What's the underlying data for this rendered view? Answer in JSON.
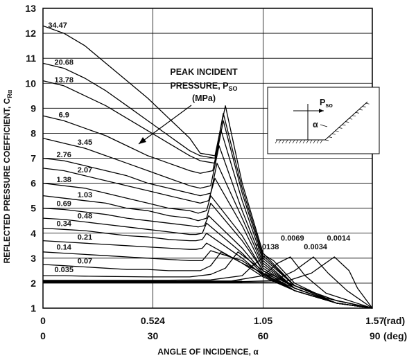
{
  "chart_data": {
    "type": "line",
    "title": "",
    "xlabel_prefix": "ANGLE OF INCIDENCE, ",
    "xlabel_symbol": "α",
    "ylabel_prefix": "REFLECTED PRESSURE COEFFICIENT, C",
    "ylabel_sub": "Rα",
    "xlim": [
      0,
      1.5708
    ],
    "ylim": [
      1,
      13
    ],
    "grid": true,
    "y_ticks": [
      "1",
      "2",
      "3",
      "4",
      "5",
      "6",
      "7",
      "8",
      "9",
      "10",
      "11",
      "12",
      "13"
    ],
    "x_ticks_rad": [
      "0",
      "0.524",
      "1.05",
      "1.57"
    ],
    "x_ticks_deg": [
      "0",
      "30",
      "60",
      "90"
    ],
    "x_unit_rad": "(rad)",
    "x_unit_deg": "(deg)",
    "annotation": {
      "line1": "PEAK INCIDENT",
      "line2_prefix": "PRESSURE, P",
      "line2_sub": "SO",
      "line3": "(MPa)"
    },
    "inset": {
      "label_prefix": "P",
      "label_sub": "so",
      "angle_symbol": "α"
    },
    "series": [
      {
        "label": "34.47",
        "x": [
          0,
          0.1,
          0.2,
          0.3,
          0.4,
          0.5,
          0.6,
          0.7,
          0.75,
          0.82,
          0.87,
          0.95,
          1.05,
          1.2,
          1.4,
          1.5708
        ],
        "y": [
          12.3,
          12.0,
          11.5,
          10.8,
          10.1,
          9.4,
          8.6,
          7.8,
          7.2,
          7.1,
          9.1,
          6.0,
          3.2,
          1.9,
          1.2,
          1.0
        ]
      },
      {
        "label": "20.68",
        "x": [
          0,
          0.1,
          0.2,
          0.3,
          0.4,
          0.5,
          0.6,
          0.7,
          0.75,
          0.82,
          0.86,
          0.95,
          1.05,
          1.2,
          1.4,
          1.5708
        ],
        "y": [
          10.8,
          10.6,
          10.2,
          9.7,
          9.1,
          8.5,
          7.9,
          7.3,
          7.1,
          7.0,
          8.8,
          5.8,
          3.1,
          1.9,
          1.2,
          1.0
        ]
      },
      {
        "label": "13.78",
        "x": [
          0,
          0.1,
          0.2,
          0.3,
          0.4,
          0.5,
          0.6,
          0.7,
          0.75,
          0.82,
          0.86,
          0.95,
          1.05,
          1.2,
          1.4,
          1.5708
        ],
        "y": [
          10.1,
          9.9,
          9.5,
          9.1,
          8.6,
          8.1,
          7.6,
          7.1,
          6.9,
          6.8,
          8.5,
          5.6,
          3.0,
          1.9,
          1.2,
          1.0
        ]
      },
      {
        "label": "6.9",
        "x": [
          0,
          0.1,
          0.2,
          0.3,
          0.4,
          0.5,
          0.6,
          0.7,
          0.75,
          0.81,
          0.85,
          0.95,
          1.05,
          1.2,
          1.4,
          1.5708
        ],
        "y": [
          8.7,
          8.5,
          8.2,
          7.9,
          7.5,
          7.1,
          6.8,
          6.5,
          6.4,
          6.5,
          8.1,
          5.3,
          2.9,
          1.8,
          1.2,
          1.0
        ]
      },
      {
        "label": "3.45",
        "x": [
          0,
          0.1,
          0.2,
          0.3,
          0.4,
          0.5,
          0.6,
          0.7,
          0.75,
          0.8,
          0.84,
          0.95,
          1.05,
          1.2,
          1.4,
          1.5708
        ],
        "y": [
          7.8,
          7.6,
          7.4,
          7.1,
          6.8,
          6.5,
          6.2,
          5.9,
          5.8,
          5.9,
          7.5,
          4.9,
          2.8,
          1.8,
          1.2,
          1.0
        ]
      },
      {
        "label": "2.76",
        "x": [
          0,
          0.1,
          0.2,
          0.3,
          0.4,
          0.5,
          0.6,
          0.7,
          0.75,
          0.8,
          0.83,
          0.95,
          1.05,
          1.2,
          1.4,
          1.5708
        ],
        "y": [
          7.0,
          6.9,
          6.7,
          6.5,
          6.3,
          6.0,
          5.8,
          5.6,
          5.5,
          5.6,
          6.8,
          4.6,
          2.7,
          1.8,
          1.2,
          1.0
        ]
      },
      {
        "label": "2.07",
        "x": [
          0,
          0.1,
          0.2,
          0.3,
          0.4,
          0.5,
          0.6,
          0.7,
          0.75,
          0.79,
          0.82,
          0.95,
          1.05,
          1.2,
          1.4,
          1.5708
        ],
        "y": [
          6.6,
          6.5,
          6.3,
          6.1,
          5.9,
          5.7,
          5.5,
          5.3,
          5.2,
          5.3,
          6.2,
          4.3,
          2.6,
          1.8,
          1.2,
          1.0
        ]
      },
      {
        "label": "1.38",
        "x": [
          0,
          0.1,
          0.2,
          0.3,
          0.4,
          0.5,
          0.6,
          0.7,
          0.74,
          0.78,
          0.8,
          0.95,
          1.05,
          1.2,
          1.4,
          1.5708
        ],
        "y": [
          6.0,
          5.9,
          5.8,
          5.6,
          5.4,
          5.2,
          5.0,
          4.9,
          4.8,
          4.9,
          5.5,
          3.9,
          2.5,
          1.7,
          1.2,
          1.0
        ]
      },
      {
        "label": "1.03",
        "x": [
          0,
          0.1,
          0.2,
          0.3,
          0.4,
          0.5,
          0.6,
          0.7,
          0.74,
          0.78,
          0.8,
          0.95,
          1.05,
          1.2,
          1.4,
          1.5708
        ],
        "y": [
          5.5,
          5.4,
          5.3,
          5.2,
          5.0,
          4.9,
          4.7,
          4.6,
          4.5,
          4.6,
          5.2,
          3.7,
          2.5,
          1.7,
          1.2,
          1.0
        ]
      },
      {
        "label": "0.69",
        "x": [
          0,
          0.1,
          0.2,
          0.3,
          0.4,
          0.5,
          0.6,
          0.7,
          0.74,
          0.77,
          0.79,
          0.95,
          1.05,
          1.2,
          1.4,
          1.5708
        ],
        "y": [
          5.0,
          4.95,
          4.85,
          4.75,
          4.6,
          4.5,
          4.4,
          4.3,
          4.25,
          4.3,
          4.7,
          3.4,
          2.4,
          1.7,
          1.2,
          1.0
        ]
      },
      {
        "label": "0.48",
        "x": [
          0,
          0.1,
          0.2,
          0.3,
          0.4,
          0.5,
          0.6,
          0.7,
          0.73,
          0.76,
          0.78,
          0.95,
          1.05,
          1.2,
          1.4,
          1.5708
        ],
        "y": [
          4.6,
          4.55,
          4.45,
          4.35,
          4.25,
          4.15,
          4.05,
          3.95,
          3.95,
          4.0,
          4.4,
          3.2,
          2.35,
          1.7,
          1.2,
          1.0
        ]
      },
      {
        "label": "0.34",
        "x": [
          0,
          0.1,
          0.2,
          0.3,
          0.4,
          0.5,
          0.6,
          0.7,
          0.73,
          0.76,
          0.78,
          0.95,
          1.05,
          1.2,
          1.4,
          1.5708
        ],
        "y": [
          4.2,
          4.15,
          4.1,
          4.0,
          3.9,
          3.85,
          3.75,
          3.7,
          3.7,
          3.75,
          4.0,
          3.0,
          2.3,
          1.7,
          1.2,
          1.0
        ]
      },
      {
        "label": "0.21",
        "x": [
          0,
          0.1,
          0.2,
          0.3,
          0.4,
          0.5,
          0.6,
          0.7,
          0.73,
          0.76,
          0.78,
          0.95,
          1.05,
          1.2,
          1.4,
          1.5708
        ],
        "y": [
          3.7,
          3.65,
          3.6,
          3.55,
          3.5,
          3.45,
          3.4,
          3.35,
          3.35,
          3.4,
          3.6,
          2.8,
          2.25,
          1.7,
          1.2,
          1.0
        ]
      },
      {
        "label": "0.14",
        "x": [
          0,
          0.1,
          0.2,
          0.3,
          0.4,
          0.5,
          0.6,
          0.7,
          0.73,
          0.76,
          0.8,
          0.95,
          1.05,
          1.2,
          1.4,
          1.5708
        ],
        "y": [
          3.25,
          3.2,
          3.15,
          3.1,
          3.05,
          3.0,
          2.95,
          2.9,
          2.9,
          2.9,
          3.3,
          2.9,
          2.35,
          1.8,
          1.2,
          1.0
        ]
      },
      {
        "label": "0.07",
        "x": [
          0,
          0.1,
          0.2,
          0.3,
          0.4,
          0.5,
          0.6,
          0.7,
          0.75,
          0.8,
          0.85,
          0.95,
          1.05,
          1.2,
          1.4,
          1.5708
        ],
        "y": [
          2.75,
          2.7,
          2.65,
          2.6,
          2.55,
          2.55,
          2.5,
          2.5,
          2.5,
          2.7,
          3.25,
          2.8,
          2.4,
          1.9,
          1.3,
          1.0
        ]
      },
      {
        "label": "0.035",
        "x": [
          0,
          0.1,
          0.2,
          0.3,
          0.4,
          0.5,
          0.6,
          0.7,
          0.8,
          0.87,
          0.93,
          1.05,
          1.2,
          1.4,
          1.5708
        ],
        "y": [
          2.3,
          2.3,
          2.28,
          2.27,
          2.26,
          2.25,
          2.25,
          2.25,
          2.35,
          2.6,
          3.25,
          2.5,
          1.9,
          1.3,
          1.0
        ]
      },
      {
        "label": "0.0138",
        "x": [
          0,
          0.3,
          0.6,
          0.8,
          0.95,
          1.0,
          1.06,
          1.1,
          1.2,
          1.35,
          1.5708
        ],
        "y": [
          2.12,
          2.12,
          2.12,
          2.13,
          2.3,
          2.7,
          3.1,
          2.9,
          2.0,
          1.4,
          1.0
        ]
      },
      {
        "label": "0.0069",
        "x": [
          0,
          0.3,
          0.6,
          0.9,
          1.05,
          1.12,
          1.18,
          1.25,
          1.35,
          1.5708
        ],
        "y": [
          2.08,
          2.08,
          2.08,
          2.09,
          2.3,
          2.8,
          3.05,
          2.3,
          1.6,
          1.0
        ]
      },
      {
        "label": "0.0034",
        "x": [
          0,
          0.3,
          0.6,
          0.9,
          1.1,
          1.2,
          1.29,
          1.36,
          1.45,
          1.5708
        ],
        "y": [
          2.05,
          2.05,
          2.05,
          2.05,
          2.1,
          2.5,
          3.05,
          2.4,
          1.7,
          1.0
        ]
      },
      {
        "label": "0.0014",
        "x": [
          0,
          0.3,
          0.6,
          0.9,
          1.15,
          1.28,
          1.39,
          1.46,
          1.5,
          1.5708
        ],
        "y": [
          2.03,
          2.03,
          2.03,
          2.03,
          2.05,
          2.4,
          3.05,
          2.5,
          1.8,
          1.0
        ]
      }
    ]
  }
}
